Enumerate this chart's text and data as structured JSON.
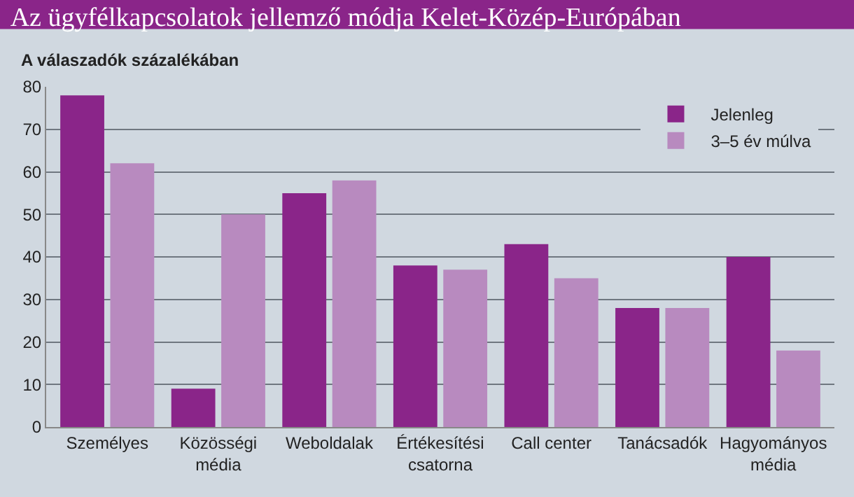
{
  "chart_data": {
    "type": "bar",
    "title": "Az ügyfélkapcsolatok jellemző módja Kelet-Közép-Európában",
    "ylabel": "A válaszadók százalékában",
    "categories": [
      "Személyes",
      "Közösségi\nmédia",
      "Weboldalak",
      "Értékesítési\ncsatorna",
      "Call center",
      "Tanácsadók",
      "Hagyományos\nmédia"
    ],
    "series": [
      {
        "name": "Jelenleg",
        "color": "#8a2589",
        "values": [
          78,
          9,
          55,
          38,
          43,
          28,
          40
        ]
      },
      {
        "name": "3–5 év múlva",
        "color": "#b88abf",
        "values": [
          62,
          50,
          58,
          37,
          35,
          28,
          18
        ]
      }
    ],
    "ylim": [
      0,
      80
    ],
    "yticks": [
      0,
      10,
      20,
      30,
      40,
      50,
      60,
      70,
      80
    ],
    "grid": "y",
    "legend": "top right"
  }
}
